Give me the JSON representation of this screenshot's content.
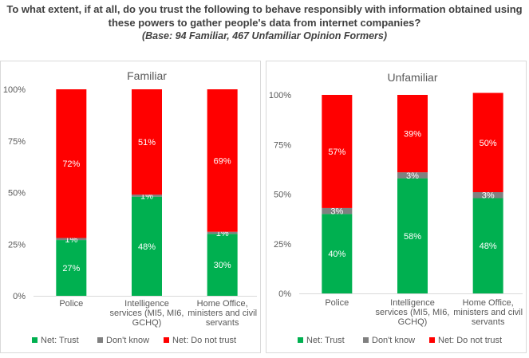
{
  "title": {
    "line1": "To what extent, if at all, do you trust the following to behave responsibly with information obtained using",
    "line2": "these powers to gather people's data from internet companies?",
    "base": "(Base: 94 Familiar, 467 Unfamiliar Opinion Formers)"
  },
  "colors": {
    "trust": "#00b050",
    "dont_know": "#808080",
    "not_trust": "#ff0000",
    "axis": "#d9d9d9",
    "text": "#595959",
    "label": "#ffffff"
  },
  "chart_data": [
    {
      "type": "bar",
      "stacked": true,
      "title": "Familiar",
      "categories": [
        [
          "Police"
        ],
        [
          "Intelligence",
          "services (MI5, MI6,",
          "GCHQ)"
        ],
        [
          "Home Office,",
          "ministers and civil",
          "servants"
        ]
      ],
      "yticks": [
        "0%",
        "25%",
        "50%",
        "75%",
        "100%"
      ],
      "ylim": [
        0,
        100
      ],
      "series": [
        {
          "name": "Net: Trust",
          "key": "trust",
          "values": [
            27,
            48,
            30
          ],
          "labels": [
            "27%",
            "48%",
            "30%"
          ]
        },
        {
          "name": "Don't know",
          "key": "dont_know",
          "values": [
            1,
            1,
            1
          ],
          "labels": [
            "1%",
            "1%",
            "1%"
          ]
        },
        {
          "name": "Net: Do not trust",
          "key": "not_trust",
          "values": [
            72,
            51,
            69
          ],
          "labels": [
            "72%",
            "51%",
            "69%"
          ]
        }
      ],
      "legend": "bottom"
    },
    {
      "type": "bar",
      "stacked": true,
      "title": "Unfamiliar",
      "categories": [
        [
          "Police"
        ],
        [
          "Intelligence",
          "services (MI5, MI6,",
          "GCHQ)"
        ],
        [
          "Home Office,",
          "ministers and civil",
          "servants"
        ]
      ],
      "yticks": [
        "0%",
        "25%",
        "50%",
        "75%",
        "100%"
      ],
      "ylim": [
        0,
        100
      ],
      "series": [
        {
          "name": "Net: Trust",
          "key": "trust",
          "values": [
            40,
            58,
            48
          ],
          "labels": [
            "40%",
            "58%",
            "48%"
          ]
        },
        {
          "name": "Don't know",
          "key": "dont_know",
          "values": [
            3,
            3,
            3
          ],
          "labels": [
            "3%",
            "3%",
            "3%"
          ]
        },
        {
          "name": "Net: Do not trust",
          "key": "not_trust",
          "values": [
            57,
            39,
            50
          ],
          "labels": [
            "57%",
            "39%",
            "50%"
          ]
        }
      ],
      "legend": "bottom"
    }
  ]
}
